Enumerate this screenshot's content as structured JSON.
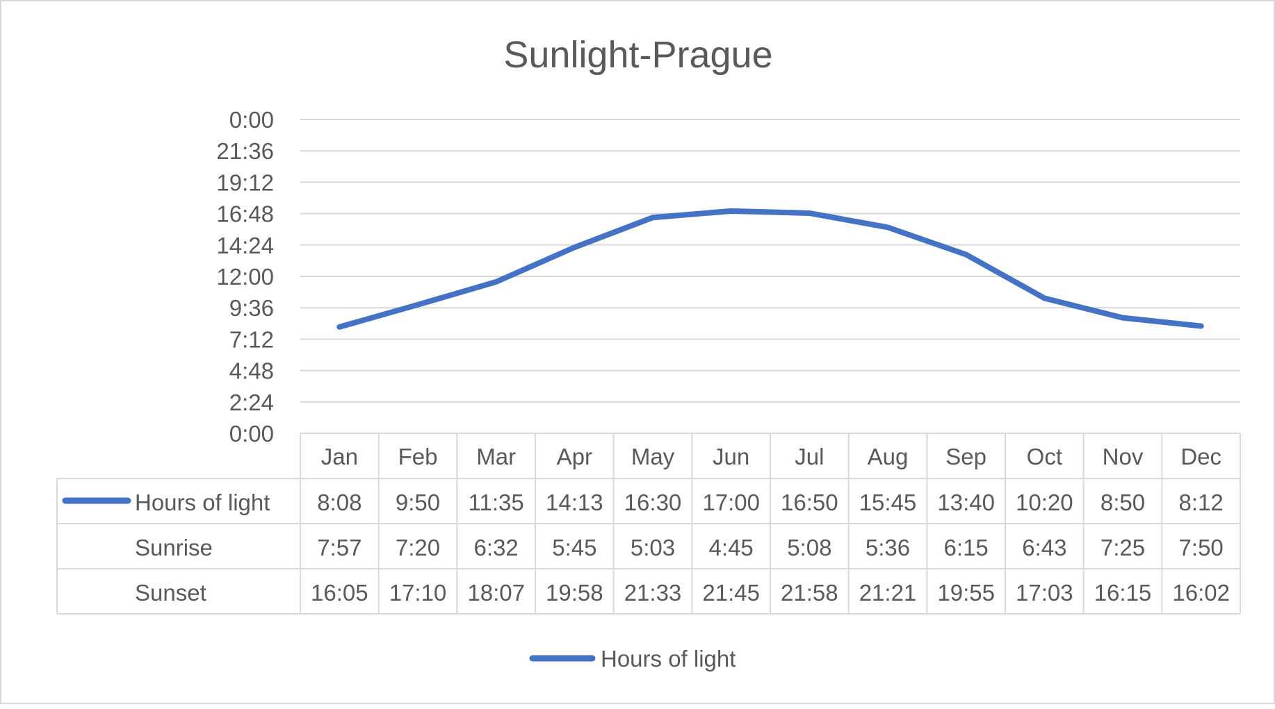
{
  "chart_data": {
    "type": "line",
    "title": "Sunlight-Prague",
    "categories": [
      "Jan",
      "Feb",
      "Mar",
      "Apr",
      "May",
      "Jun",
      "Jul",
      "Aug",
      "Sep",
      "Oct",
      "Nov",
      "Dec"
    ],
    "y_tick_labels": [
      "0:00",
      "2:24",
      "4:48",
      "7:12",
      "9:36",
      "12:00",
      "14:24",
      "16:48",
      "19:12",
      "21:36",
      "0:00"
    ],
    "ylim_hours": [
      0,
      24
    ],
    "grid": true,
    "legend_position": "bottom",
    "series": [
      {
        "name": "Hours of light",
        "color": "#4472c4",
        "plotted": true,
        "labels": [
          "8:08",
          "9:50",
          "11:35",
          "14:13",
          "16:30",
          "17:00",
          "16:50",
          "15:45",
          "13:40",
          "10:20",
          "8:50",
          "8:12"
        ],
        "values_hours": [
          8.133,
          9.833,
          11.583,
          14.217,
          16.5,
          17.0,
          16.833,
          15.75,
          13.667,
          10.333,
          8.833,
          8.2
        ]
      },
      {
        "name": "Sunrise",
        "plotted": false,
        "labels": [
          "7:57",
          "7:20",
          "6:32",
          "5:45",
          "5:03",
          "4:45",
          "5:08",
          "5:36",
          "6:15",
          "6:43",
          "7:25",
          "7:50"
        ]
      },
      {
        "name": "Sunset",
        "plotted": false,
        "labels": [
          "16:05",
          "17:10",
          "18:07",
          "19:58",
          "21:33",
          "21:45",
          "21:58",
          "21:21",
          "19:55",
          "17:03",
          "16:15",
          "16:02"
        ]
      }
    ],
    "legend": [
      {
        "label": "Hours of light",
        "color": "#4472c4"
      }
    ]
  }
}
